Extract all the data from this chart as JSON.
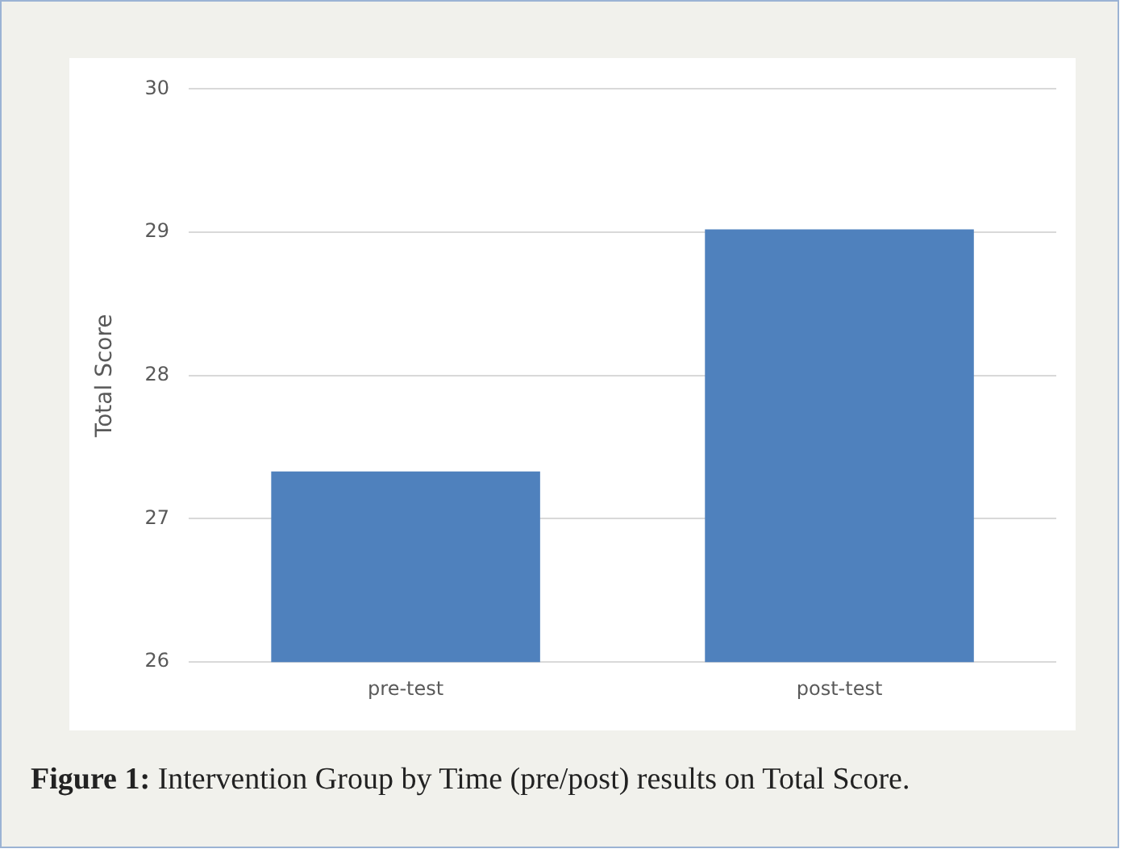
{
  "chart_data": {
    "type": "bar",
    "ylabel": "Total Score",
    "categories": [
      "pre-test",
      "post-test"
    ],
    "values": [
      27.33,
      29.02
    ],
    "color": "#4f81bd",
    "ylim": [
      26,
      30
    ],
    "yticks": [
      26,
      27,
      28,
      29,
      30
    ],
    "grid": "y",
    "annotations": [
      "Figure 1: Intervention Group by Time (pre/post) results on Total Score."
    ]
  }
}
